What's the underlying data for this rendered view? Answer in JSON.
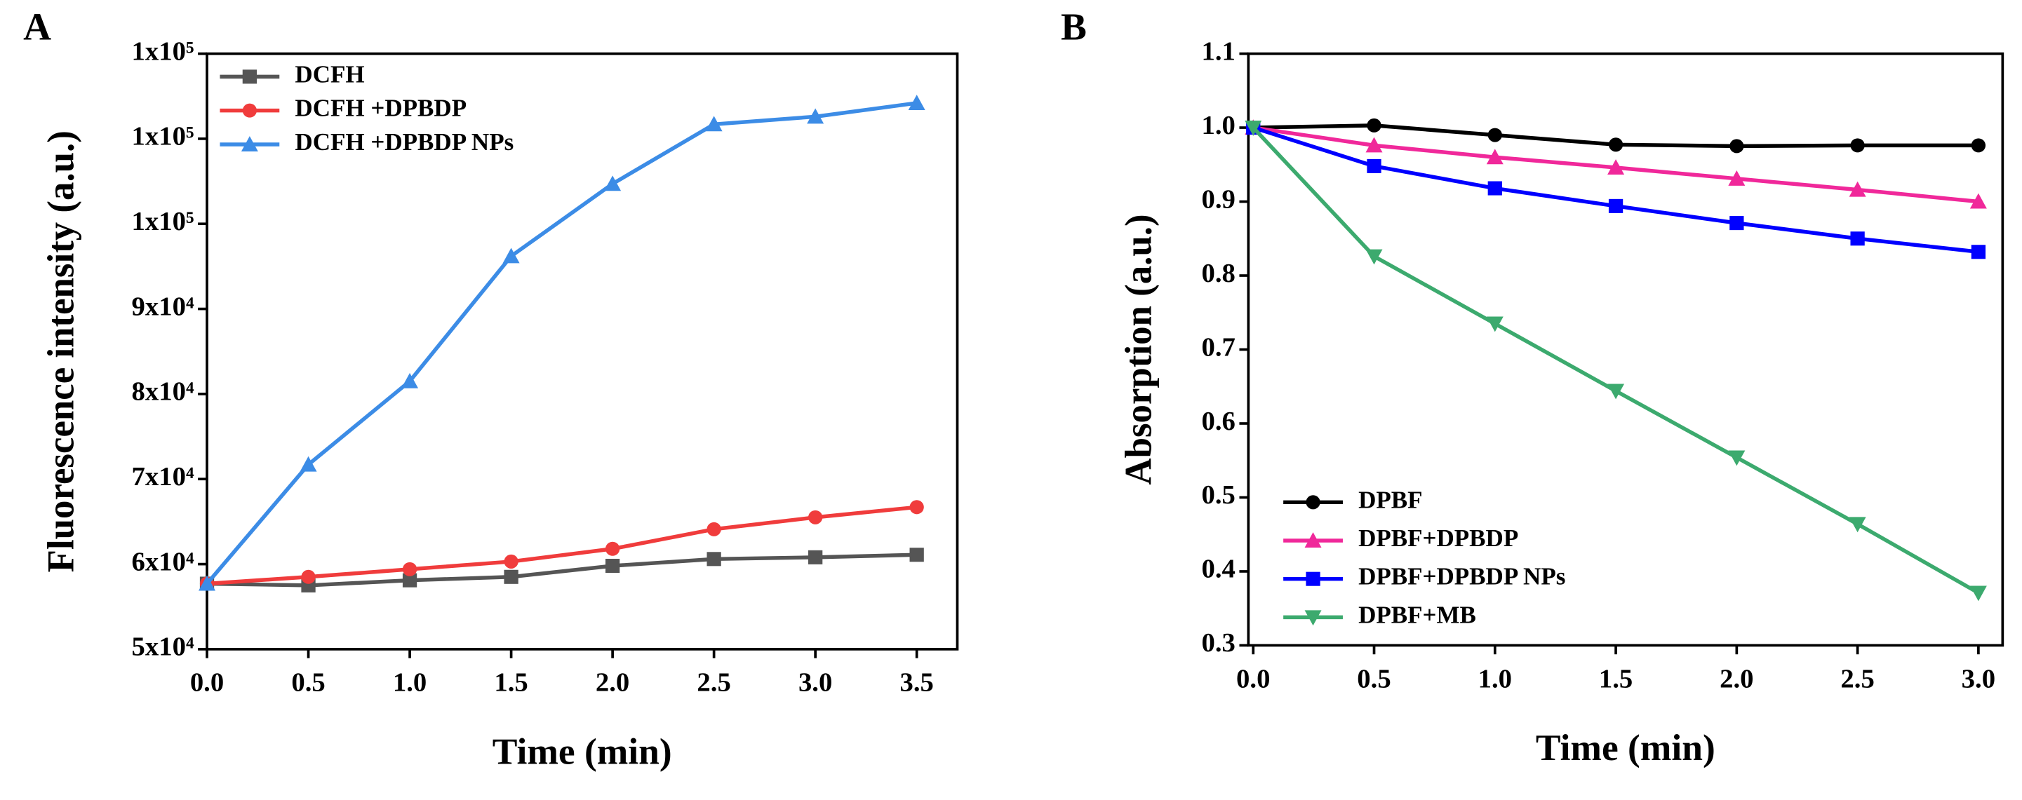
{
  "chart_data": [
    {
      "type": "line",
      "panel": "A",
      "xlabel": "Time (min)",
      "ylabel": "Fluorescence intensity (a.u.)",
      "legend": "upper left",
      "x": [
        0,
        0.5,
        1,
        1.5,
        2,
        2.5,
        3,
        3.5
      ],
      "series": [
        {
          "name": "DCFH",
          "color": "#555555",
          "marker": "square",
          "values": [
            57700,
            57500,
            58100,
            58500,
            59800,
            60600,
            60800,
            61100
          ]
        },
        {
          "name": "DCFH +DPBDP",
          "color": "#f03c3c",
          "marker": "circle",
          "values": [
            57700,
            58500,
            59400,
            60300,
            61800,
            64100,
            65500,
            66700
          ]
        },
        {
          "name": "DCFH +DPBDP NPs",
          "color": "#3c8ce6",
          "marker": "triangle-up",
          "values": [
            57700,
            71700,
            81500,
            96200,
            104700,
            111700,
            112600,
            114200
          ]
        }
      ],
      "xlim": [
        0,
        3.7
      ],
      "xticks": [
        {
          "value": 0,
          "label": "0.0"
        },
        {
          "value": 0.5,
          "label": "0.5"
        },
        {
          "value": 1,
          "label": "1.0"
        },
        {
          "value": 1.5,
          "label": "1.5"
        },
        {
          "value": 2,
          "label": "2.0"
        },
        {
          "value": 2.5,
          "label": "2.5"
        },
        {
          "value": 3,
          "label": "3.0"
        },
        {
          "value": 3.5,
          "label": "3.5"
        }
      ],
      "ylim": [
        50000,
        120000
      ],
      "yticks": [
        {
          "value": 50000,
          "label": "5x10⁴"
        },
        {
          "value": 60000,
          "label": "6x10⁴"
        },
        {
          "value": 70000,
          "label": "7x10⁴"
        },
        {
          "value": 80000,
          "label": "8x10⁴"
        },
        {
          "value": 90000,
          "label": "9x10⁴"
        },
        {
          "value": 100000,
          "label": "1x10⁵"
        },
        {
          "value": 110000,
          "label": "1x10⁵"
        },
        {
          "value": 120000,
          "label": "1x10⁵"
        }
      ]
    },
    {
      "type": "line",
      "panel": "B",
      "xlabel": "Time (min)",
      "ylabel": "Absorption (a.u.)",
      "legend": "lower left",
      "x": [
        0,
        0.5,
        1,
        1.5,
        2,
        2.5,
        3
      ],
      "series": [
        {
          "name": "DPBF",
          "color": "#000000",
          "marker": "circle",
          "values": [
            1.0,
            1.003,
            0.99,
            0.977,
            0.975,
            0.976,
            0.976
          ]
        },
        {
          "name": "DPBF+DPBDP",
          "color": "#f0289a",
          "marker": "triangle-up",
          "values": [
            1.0,
            0.976,
            0.96,
            0.946,
            0.931,
            0.916,
            0.9
          ]
        },
        {
          "name": "DPBF+DPBDP NPs",
          "color": "#0000ff",
          "marker": "square",
          "values": [
            1.0,
            0.948,
            0.918,
            0.894,
            0.871,
            0.85,
            0.832
          ]
        },
        {
          "name": "DPBF+MB",
          "color": "#3caa6e",
          "marker": "triangle-down",
          "values": [
            1.0,
            0.826,
            0.735,
            0.644,
            0.554,
            0.464,
            0.371
          ]
        }
      ],
      "xlim": [
        -0.02,
        3.1
      ],
      "xticks": [
        {
          "value": 0,
          "label": "0.0"
        },
        {
          "value": 0.5,
          "label": "0.5"
        },
        {
          "value": 1,
          "label": "1.0"
        },
        {
          "value": 1.5,
          "label": "1.5"
        },
        {
          "value": 2,
          "label": "2.0"
        },
        {
          "value": 2.5,
          "label": "2.5"
        },
        {
          "value": 3,
          "label": "3.0"
        }
      ],
      "ylim": [
        0.3,
        1.1
      ],
      "yticks": [
        {
          "value": 0.3,
          "label": "0.3"
        },
        {
          "value": 0.4,
          "label": "0.4"
        },
        {
          "value": 0.5,
          "label": "0.5"
        },
        {
          "value": 0.6,
          "label": "0.6"
        },
        {
          "value": 0.7,
          "label": "0.7"
        },
        {
          "value": 0.8,
          "label": "0.8"
        },
        {
          "value": 0.9,
          "label": "0.9"
        },
        {
          "value": 1.0,
          "label": "1.0"
        },
        {
          "value": 1.1,
          "label": "1.1"
        }
      ]
    }
  ]
}
